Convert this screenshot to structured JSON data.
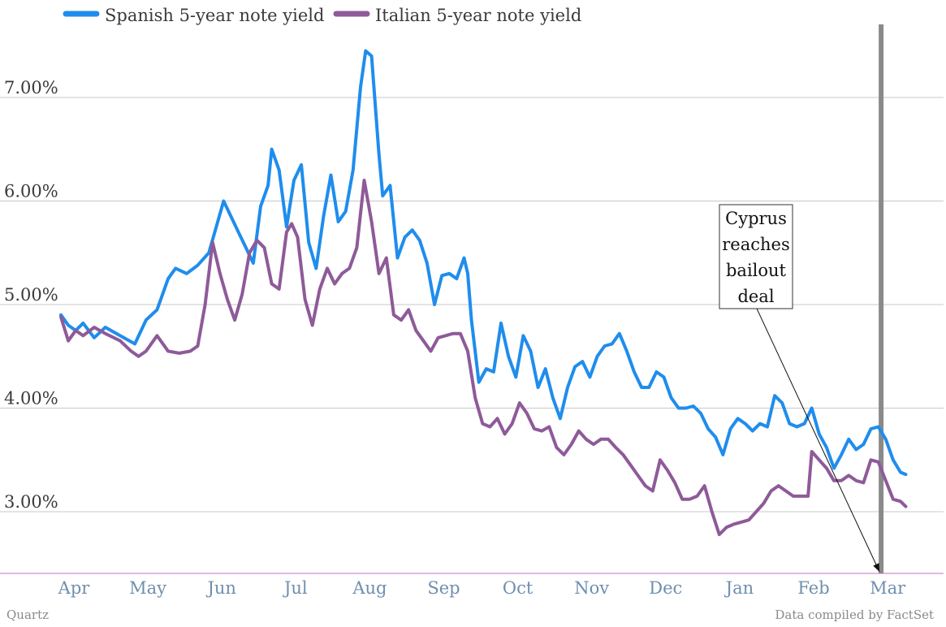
{
  "chart_data": {
    "type": "line",
    "title": "",
    "xlabel": "",
    "ylabel": "",
    "x_ticks": [
      "Apr",
      "May",
      "Jun",
      "Jul",
      "Aug",
      "Sep",
      "Oct",
      "Nov",
      "Dec",
      "Jan",
      "Feb",
      "Mar"
    ],
    "y_ticks": [
      "3.00%",
      "4.00%",
      "5.00%",
      "6.00%",
      "7.00%"
    ],
    "ylim": [
      2.4,
      7.7
    ],
    "grid": true,
    "legend_position": "top-left",
    "series": [
      {
        "name": "Spanish 5-year note yield",
        "color": "#1f8ded",
        "points": [
          [
            0.0,
            4.9
          ],
          [
            0.1,
            4.8
          ],
          [
            0.2,
            4.75
          ],
          [
            0.3,
            4.82
          ],
          [
            0.45,
            4.68
          ],
          [
            0.6,
            4.78
          ],
          [
            0.8,
            4.7
          ],
          [
            1.0,
            4.62
          ],
          [
            1.15,
            4.85
          ],
          [
            1.3,
            4.95
          ],
          [
            1.45,
            5.25
          ],
          [
            1.55,
            5.35
          ],
          [
            1.7,
            5.3
          ],
          [
            1.85,
            5.38
          ],
          [
            2.0,
            5.5
          ],
          [
            2.1,
            5.75
          ],
          [
            2.2,
            6.0
          ],
          [
            2.3,
            5.85
          ],
          [
            2.4,
            5.7
          ],
          [
            2.5,
            5.55
          ],
          [
            2.6,
            5.4
          ],
          [
            2.7,
            5.95
          ],
          [
            2.8,
            6.15
          ],
          [
            2.85,
            6.5
          ],
          [
            2.95,
            6.3
          ],
          [
            3.05,
            5.75
          ],
          [
            3.15,
            6.2
          ],
          [
            3.25,
            6.35
          ],
          [
            3.35,
            5.6
          ],
          [
            3.45,
            5.35
          ],
          [
            3.55,
            5.85
          ],
          [
            3.65,
            6.25
          ],
          [
            3.75,
            5.8
          ],
          [
            3.85,
            5.9
          ],
          [
            3.95,
            6.3
          ],
          [
            4.05,
            7.1
          ],
          [
            4.12,
            7.45
          ],
          [
            4.2,
            7.4
          ],
          [
            4.3,
            6.45
          ],
          [
            4.35,
            6.05
          ],
          [
            4.45,
            6.15
          ],
          [
            4.55,
            5.45
          ],
          [
            4.65,
            5.65
          ],
          [
            4.75,
            5.72
          ],
          [
            4.85,
            5.62
          ],
          [
            4.95,
            5.4
          ],
          [
            5.05,
            5.0
          ],
          [
            5.15,
            5.28
          ],
          [
            5.25,
            5.3
          ],
          [
            5.35,
            5.25
          ],
          [
            5.45,
            5.45
          ],
          [
            5.5,
            5.3
          ],
          [
            5.55,
            4.85
          ],
          [
            5.65,
            4.25
          ],
          [
            5.75,
            4.38
          ],
          [
            5.85,
            4.35
          ],
          [
            5.95,
            4.82
          ],
          [
            6.05,
            4.5
          ],
          [
            6.15,
            4.3
          ],
          [
            6.25,
            4.7
          ],
          [
            6.35,
            4.55
          ],
          [
            6.45,
            4.2
          ],
          [
            6.55,
            4.38
          ],
          [
            6.65,
            4.1
          ],
          [
            6.75,
            3.9
          ],
          [
            6.85,
            4.2
          ],
          [
            6.95,
            4.4
          ],
          [
            7.05,
            4.45
          ],
          [
            7.15,
            4.3
          ],
          [
            7.25,
            4.5
          ],
          [
            7.35,
            4.6
          ],
          [
            7.45,
            4.62
          ],
          [
            7.55,
            4.72
          ],
          [
            7.65,
            4.55
          ],
          [
            7.75,
            4.35
          ],
          [
            7.85,
            4.2
          ],
          [
            7.95,
            4.2
          ],
          [
            8.05,
            4.35
          ],
          [
            8.15,
            4.3
          ],
          [
            8.25,
            4.1
          ],
          [
            8.35,
            4.0
          ],
          [
            8.45,
            4.0
          ],
          [
            8.55,
            4.02
          ],
          [
            8.65,
            3.95
          ],
          [
            8.75,
            3.8
          ],
          [
            8.85,
            3.72
          ],
          [
            8.95,
            3.55
          ],
          [
            9.05,
            3.8
          ],
          [
            9.15,
            3.9
          ],
          [
            9.25,
            3.85
          ],
          [
            9.35,
            3.78
          ],
          [
            9.45,
            3.85
          ],
          [
            9.55,
            3.82
          ],
          [
            9.65,
            4.12
          ],
          [
            9.75,
            4.05
          ],
          [
            9.85,
            3.85
          ],
          [
            9.95,
            3.82
          ],
          [
            10.05,
            3.85
          ],
          [
            10.15,
            4.0
          ],
          [
            10.25,
            3.75
          ],
          [
            10.35,
            3.62
          ],
          [
            10.45,
            3.42
          ],
          [
            10.55,
            3.55
          ],
          [
            10.65,
            3.7
          ],
          [
            10.75,
            3.6
          ],
          [
            10.85,
            3.65
          ],
          [
            10.95,
            3.8
          ],
          [
            11.05,
            3.82
          ],
          [
            11.15,
            3.7
          ],
          [
            11.25,
            3.5
          ],
          [
            11.35,
            3.38
          ],
          [
            11.42,
            3.36
          ]
        ]
      },
      {
        "name": "Italian 5-year note yield",
        "color": "#8e5a99",
        "points": [
          [
            0.0,
            4.88
          ],
          [
            0.1,
            4.65
          ],
          [
            0.2,
            4.75
          ],
          [
            0.3,
            4.7
          ],
          [
            0.45,
            4.78
          ],
          [
            0.6,
            4.72
          ],
          [
            0.8,
            4.65
          ],
          [
            0.95,
            4.55
          ],
          [
            1.05,
            4.5
          ],
          [
            1.15,
            4.55
          ],
          [
            1.3,
            4.7
          ],
          [
            1.45,
            4.55
          ],
          [
            1.6,
            4.53
          ],
          [
            1.75,
            4.55
          ],
          [
            1.85,
            4.6
          ],
          [
            1.95,
            5.0
          ],
          [
            2.05,
            5.6
          ],
          [
            2.15,
            5.3
          ],
          [
            2.25,
            5.05
          ],
          [
            2.35,
            4.85
          ],
          [
            2.45,
            5.1
          ],
          [
            2.55,
            5.5
          ],
          [
            2.65,
            5.62
          ],
          [
            2.75,
            5.55
          ],
          [
            2.85,
            5.2
          ],
          [
            2.95,
            5.15
          ],
          [
            3.05,
            5.7
          ],
          [
            3.12,
            5.78
          ],
          [
            3.2,
            5.65
          ],
          [
            3.3,
            5.05
          ],
          [
            3.4,
            4.8
          ],
          [
            3.5,
            5.15
          ],
          [
            3.6,
            5.35
          ],
          [
            3.7,
            5.2
          ],
          [
            3.8,
            5.3
          ],
          [
            3.9,
            5.35
          ],
          [
            4.0,
            5.55
          ],
          [
            4.1,
            6.2
          ],
          [
            4.2,
            5.8
          ],
          [
            4.3,
            5.3
          ],
          [
            4.4,
            5.45
          ],
          [
            4.5,
            4.9
          ],
          [
            4.6,
            4.85
          ],
          [
            4.7,
            4.95
          ],
          [
            4.8,
            4.75
          ],
          [
            4.9,
            4.65
          ],
          [
            5.0,
            4.55
          ],
          [
            5.1,
            4.68
          ],
          [
            5.2,
            4.7
          ],
          [
            5.3,
            4.72
          ],
          [
            5.4,
            4.72
          ],
          [
            5.5,
            4.55
          ],
          [
            5.6,
            4.1
          ],
          [
            5.7,
            3.85
          ],
          [
            5.8,
            3.82
          ],
          [
            5.9,
            3.9
          ],
          [
            6.0,
            3.75
          ],
          [
            6.1,
            3.85
          ],
          [
            6.2,
            4.05
          ],
          [
            6.3,
            3.95
          ],
          [
            6.4,
            3.8
          ],
          [
            6.5,
            3.78
          ],
          [
            6.6,
            3.82
          ],
          [
            6.7,
            3.62
          ],
          [
            6.8,
            3.55
          ],
          [
            6.9,
            3.65
          ],
          [
            7.0,
            3.78
          ],
          [
            7.1,
            3.7
          ],
          [
            7.2,
            3.65
          ],
          [
            7.3,
            3.7
          ],
          [
            7.4,
            3.7
          ],
          [
            7.5,
            3.62
          ],
          [
            7.6,
            3.55
          ],
          [
            7.7,
            3.45
          ],
          [
            7.8,
            3.35
          ],
          [
            7.9,
            3.25
          ],
          [
            8.0,
            3.2
          ],
          [
            8.1,
            3.5
          ],
          [
            8.2,
            3.4
          ],
          [
            8.3,
            3.28
          ],
          [
            8.4,
            3.12
          ],
          [
            8.5,
            3.12
          ],
          [
            8.6,
            3.15
          ],
          [
            8.7,
            3.25
          ],
          [
            8.8,
            3.0
          ],
          [
            8.9,
            2.78
          ],
          [
            9.0,
            2.85
          ],
          [
            9.1,
            2.88
          ],
          [
            9.2,
            2.9
          ],
          [
            9.3,
            2.92
          ],
          [
            9.4,
            3.0
          ],
          [
            9.5,
            3.08
          ],
          [
            9.6,
            3.2
          ],
          [
            9.7,
            3.25
          ],
          [
            9.8,
            3.2
          ],
          [
            9.9,
            3.15
          ],
          [
            10.0,
            3.15
          ],
          [
            10.1,
            3.15
          ],
          [
            10.15,
            3.58
          ],
          [
            10.25,
            3.5
          ],
          [
            10.35,
            3.42
          ],
          [
            10.45,
            3.3
          ],
          [
            10.55,
            3.3
          ],
          [
            10.65,
            3.35
          ],
          [
            10.75,
            3.3
          ],
          [
            10.85,
            3.28
          ],
          [
            10.95,
            3.5
          ],
          [
            11.05,
            3.48
          ],
          [
            11.15,
            3.3
          ],
          [
            11.25,
            3.12
          ],
          [
            11.35,
            3.1
          ],
          [
            11.42,
            3.05
          ]
        ]
      }
    ],
    "event_marker": {
      "x": 11.0,
      "color": "#8a8a8a"
    },
    "annotation": {
      "lines": [
        "Cyprus",
        "reaches",
        "bailout",
        "deal"
      ],
      "target_x": 11.0
    },
    "source": "Data compiled by FactSet",
    "publisher": "Quartz"
  }
}
